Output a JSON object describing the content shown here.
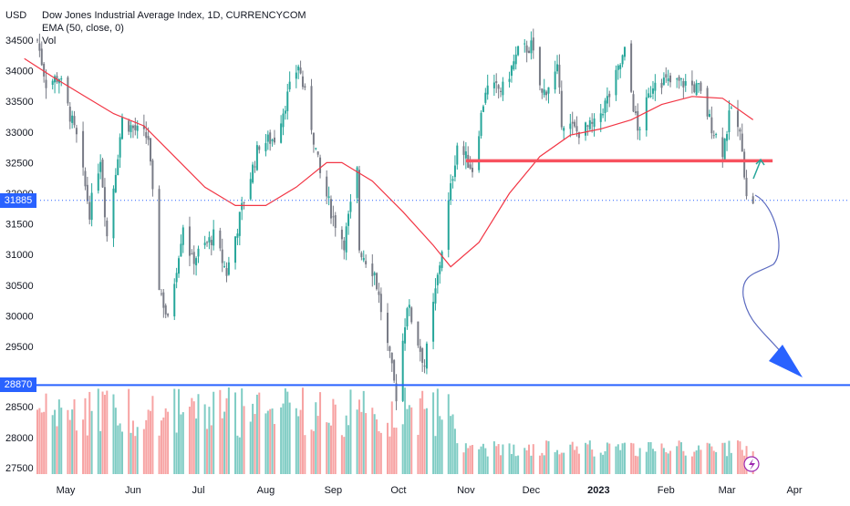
{
  "legend": {
    "symbol": "Dow Jones Industrial Average Index, 1D, CURRENCYCOM",
    "ema": "EMA (50, close, 0)",
    "vol": "Vol"
  },
  "currency_label": "USD",
  "price_tags": [
    {
      "value": "31885",
      "color": "#2962ff"
    },
    {
      "value": "28870",
      "color": "#2962ff"
    }
  ],
  "colors": {
    "up": "#26a69a",
    "down": "#787b86",
    "ema": "#f23645",
    "support": "#f7525f",
    "target": "#2962ff",
    "vol_up": "#7fccc4",
    "vol_down": "#f7a3a3",
    "bolt": "#9c27b0"
  },
  "chart_data": {
    "type": "candlestick",
    "ylim": [
      27300,
      35050
    ],
    "y_ticks": [
      34500,
      34000,
      33500,
      33000,
      32500,
      32000,
      31500,
      31000,
      30500,
      30000,
      29500,
      28500,
      28000,
      27500
    ],
    "x_ticks": [
      {
        "label": "May",
        "date": "2022-05-01"
      },
      {
        "label": "Jun",
        "date": "2022-06-01"
      },
      {
        "label": "Jul",
        "date": "2022-07-01"
      },
      {
        "label": "Aug",
        "date": "2022-08-01"
      },
      {
        "label": "Sep",
        "date": "2022-09-01"
      },
      {
        "label": "Oct",
        "date": "2022-10-01"
      },
      {
        "label": "Nov",
        "date": "2022-11-01"
      },
      {
        "label": "Dec",
        "date": "2022-12-01"
      },
      {
        "label": "2023",
        "date": "2023-01-01"
      },
      {
        "label": "Feb",
        "date": "2023-02-01"
      },
      {
        "label": "Mar",
        "date": "2023-03-01"
      },
      {
        "label": "Apr",
        "date": "2023-04-01"
      }
    ],
    "price_path": [
      [
        "2022-04-18",
        34500
      ],
      [
        "2022-04-22",
        33800
      ],
      [
        "2022-04-28",
        33900
      ],
      [
        "2022-05-06",
        32900
      ],
      [
        "2022-05-12",
        31700
      ],
      [
        "2022-05-17",
        32600
      ],
      [
        "2022-05-20",
        31300
      ],
      [
        "2022-05-27",
        33200
      ],
      [
        "2022-06-03",
        33000
      ],
      [
        "2022-06-08",
        32900
      ],
      [
        "2022-06-13",
        30500
      ],
      [
        "2022-06-17",
        29900
      ],
      [
        "2022-06-24",
        31500
      ],
      [
        "2022-06-28",
        30900
      ],
      [
        "2022-07-08",
        31300
      ],
      [
        "2022-07-14",
        30700
      ],
      [
        "2022-07-22",
        31900
      ],
      [
        "2022-07-29",
        32800
      ],
      [
        "2022-08-05",
        32900
      ],
      [
        "2022-08-12",
        33700
      ],
      [
        "2022-08-16",
        34100
      ],
      [
        "2022-08-22",
        33100
      ],
      [
        "2022-08-26",
        32300
      ],
      [
        "2022-09-01",
        31600
      ],
      [
        "2022-09-06",
        31200
      ],
      [
        "2022-09-12",
        32350
      ],
      [
        "2022-09-13",
        31100
      ],
      [
        "2022-09-20",
        30700
      ],
      [
        "2022-09-27",
        29300
      ],
      [
        "2022-09-30",
        28700
      ],
      [
        "2022-10-05",
        30200
      ],
      [
        "2022-10-13",
        29200
      ],
      [
        "2022-10-21",
        31100
      ],
      [
        "2022-10-28",
        32800
      ],
      [
        "2022-11-04",
        32400
      ],
      [
        "2022-11-10",
        33700
      ],
      [
        "2022-11-18",
        33700
      ],
      [
        "2022-11-25",
        34300
      ],
      [
        "2022-12-01",
        34400
      ],
      [
        "2022-12-06",
        33600
      ],
      [
        "2022-12-13",
        34000
      ],
      [
        "2022-12-15",
        33200
      ],
      [
        "2022-12-22",
        33000
      ],
      [
        "2022-12-30",
        33100
      ],
      [
        "2023-01-06",
        33600
      ],
      [
        "2023-01-13",
        34300
      ],
      [
        "2023-01-19",
        33000
      ],
      [
        "2023-01-27",
        33900
      ],
      [
        "2023-02-02",
        33800
      ],
      [
        "2023-02-10",
        33800
      ],
      [
        "2023-02-16",
        33700
      ],
      [
        "2023-02-22",
        33100
      ],
      [
        "2023-02-27",
        32700
      ],
      [
        "2023-03-03",
        33400
      ],
      [
        "2023-03-08",
        32800
      ],
      [
        "2023-03-10",
        31900
      ],
      [
        "2023-03-13",
        31885
      ]
    ],
    "ema_path": [
      [
        "2022-04-12",
        34200
      ],
      [
        "2022-04-25",
        33900
      ],
      [
        "2022-05-09",
        33600
      ],
      [
        "2022-05-23",
        33300
      ],
      [
        "2022-06-06",
        33100
      ],
      [
        "2022-06-20",
        32600
      ],
      [
        "2022-07-04",
        32100
      ],
      [
        "2022-07-18",
        31800
      ],
      [
        "2022-08-01",
        31800
      ],
      [
        "2022-08-15",
        32100
      ],
      [
        "2022-08-29",
        32500
      ],
      [
        "2022-09-05",
        32500
      ],
      [
        "2022-09-19",
        32200
      ],
      [
        "2022-10-03",
        31700
      ],
      [
        "2022-10-17",
        31150
      ],
      [
        "2022-10-25",
        30800
      ],
      [
        "2022-11-07",
        31200
      ],
      [
        "2022-11-21",
        32000
      ],
      [
        "2022-12-05",
        32600
      ],
      [
        "2022-12-19",
        32950
      ],
      [
        "2023-01-02",
        33050
      ],
      [
        "2023-01-16",
        33200
      ],
      [
        "2023-01-30",
        33450
      ],
      [
        "2023-02-13",
        33580
      ],
      [
        "2023-02-27",
        33550
      ],
      [
        "2023-03-13",
        33200
      ]
    ],
    "annotations": {
      "support_level": {
        "value": 32530,
        "from": "2022-11-01",
        "to": "2023-03-22"
      },
      "target_level": {
        "value": 28870
      },
      "current_level": {
        "value": 31885
      }
    },
    "volume_axis_values": [
      28500,
      28000,
      27500
    ]
  }
}
